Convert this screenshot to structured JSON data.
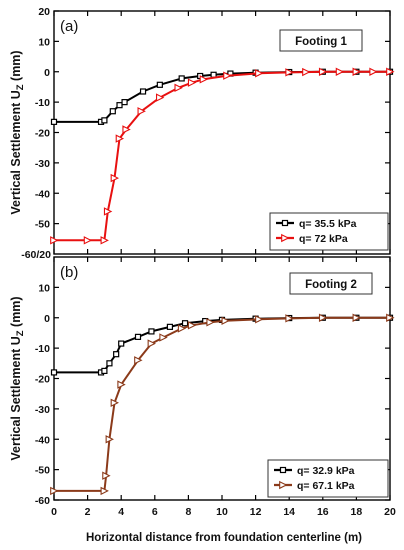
{
  "xlabel": "Horizontal distance from foundation centerline (m)",
  "ylabel": "Vertical Settlement U",
  "ylabel_sub": "Z",
  "ylabel_unit": " (mm)",
  "shared_tick": "-60/20",
  "chart_data": [
    {
      "type": "line",
      "panel_label": "(a)",
      "title": "Footing 1",
      "xlim": [
        0,
        20
      ],
      "ylim": [
        -60,
        20
      ],
      "x_ticks": [
        "0",
        "2",
        "4",
        "6",
        "8",
        "10",
        "12",
        "14",
        "16",
        "18",
        "20"
      ],
      "y_ticks": [
        "20",
        "10",
        "0",
        "-10",
        "-20",
        "-30",
        "-40",
        "-50"
      ],
      "legend_position": "bottom-right",
      "grid": false,
      "series": [
        {
          "name": "q= 35.5 kPa",
          "color": "#000000",
          "marker": "square",
          "x": [
            0,
            2.8,
            3.0,
            3.5,
            3.9,
            4.2,
            5.3,
            6.3,
            7.6,
            8.7,
            9.5,
            10.5,
            12.0,
            14.0,
            16.0,
            18.0,
            20.0
          ],
          "y": [
            -16.5,
            -16.5,
            -16.0,
            -13.0,
            -11.0,
            -10.0,
            -6.5,
            -4.3,
            -2.2,
            -1.4,
            -1.0,
            -0.6,
            -0.3,
            -0.1,
            0.0,
            0.0,
            0.0
          ]
        },
        {
          "name": "q= 72 kPa",
          "color": "#e81010",
          "marker": "triangle-right",
          "x": [
            0,
            2.0,
            3.0,
            3.2,
            3.6,
            3.9,
            4.3,
            5.2,
            6.3,
            7.4,
            8.2,
            8.9,
            10.3,
            12.2,
            14.0,
            15.0,
            16.0,
            17.0,
            18.0,
            19.0,
            20.0
          ],
          "y": [
            -55.5,
            -55.5,
            -55.5,
            -46.0,
            -35.0,
            -22.0,
            -19.0,
            -13.0,
            -8.5,
            -5.3,
            -3.6,
            -2.5,
            -1.3,
            -0.5,
            -0.2,
            -0.1,
            0.0,
            0.0,
            0.0,
            0.0,
            0.0
          ]
        }
      ]
    },
    {
      "type": "line",
      "panel_label": "(b)",
      "title": "Footing 2",
      "xlim": [
        0,
        20
      ],
      "ylim": [
        -60,
        20
      ],
      "x_ticks": [
        "0",
        "2",
        "4",
        "6",
        "8",
        "10",
        "12",
        "14",
        "16",
        "18",
        "20"
      ],
      "y_ticks": [
        "10",
        "0",
        "-10",
        "-20",
        "-30",
        "-40",
        "-50",
        "-60"
      ],
      "legend_position": "bottom-right",
      "grid": false,
      "series": [
        {
          "name": "q= 32.9 kPa",
          "color": "#000000",
          "marker": "square",
          "x": [
            0,
            2.8,
            3.0,
            3.3,
            3.7,
            4.0,
            5.0,
            5.8,
            6.9,
            7.8,
            9.0,
            10.0,
            12.0,
            14.0,
            16.0,
            18.0,
            20.0
          ],
          "y": [
            -18.0,
            -18.0,
            -17.5,
            -15.0,
            -12.0,
            -8.5,
            -6.3,
            -4.5,
            -3.0,
            -1.8,
            -1.1,
            -0.7,
            -0.3,
            -0.1,
            0.0,
            0.0,
            0.0
          ]
        },
        {
          "name": "q= 67.1 kPa",
          "color": "#8b3a1a",
          "marker": "triangle-right",
          "x": [
            0,
            3.0,
            3.1,
            3.3,
            3.6,
            4.0,
            5.0,
            5.8,
            6.5,
            7.6,
            8.2,
            9.3,
            10.2,
            12.2,
            14.0,
            16.0,
            18.0,
            20.0
          ],
          "y": [
            -57.0,
            -57.0,
            -52.0,
            -40.0,
            -28.0,
            -22.0,
            -14.0,
            -8.5,
            -6.5,
            -3.5,
            -2.5,
            -1.5,
            -1.0,
            -0.5,
            -0.2,
            0.0,
            0.0,
            0.0
          ]
        }
      ]
    }
  ]
}
